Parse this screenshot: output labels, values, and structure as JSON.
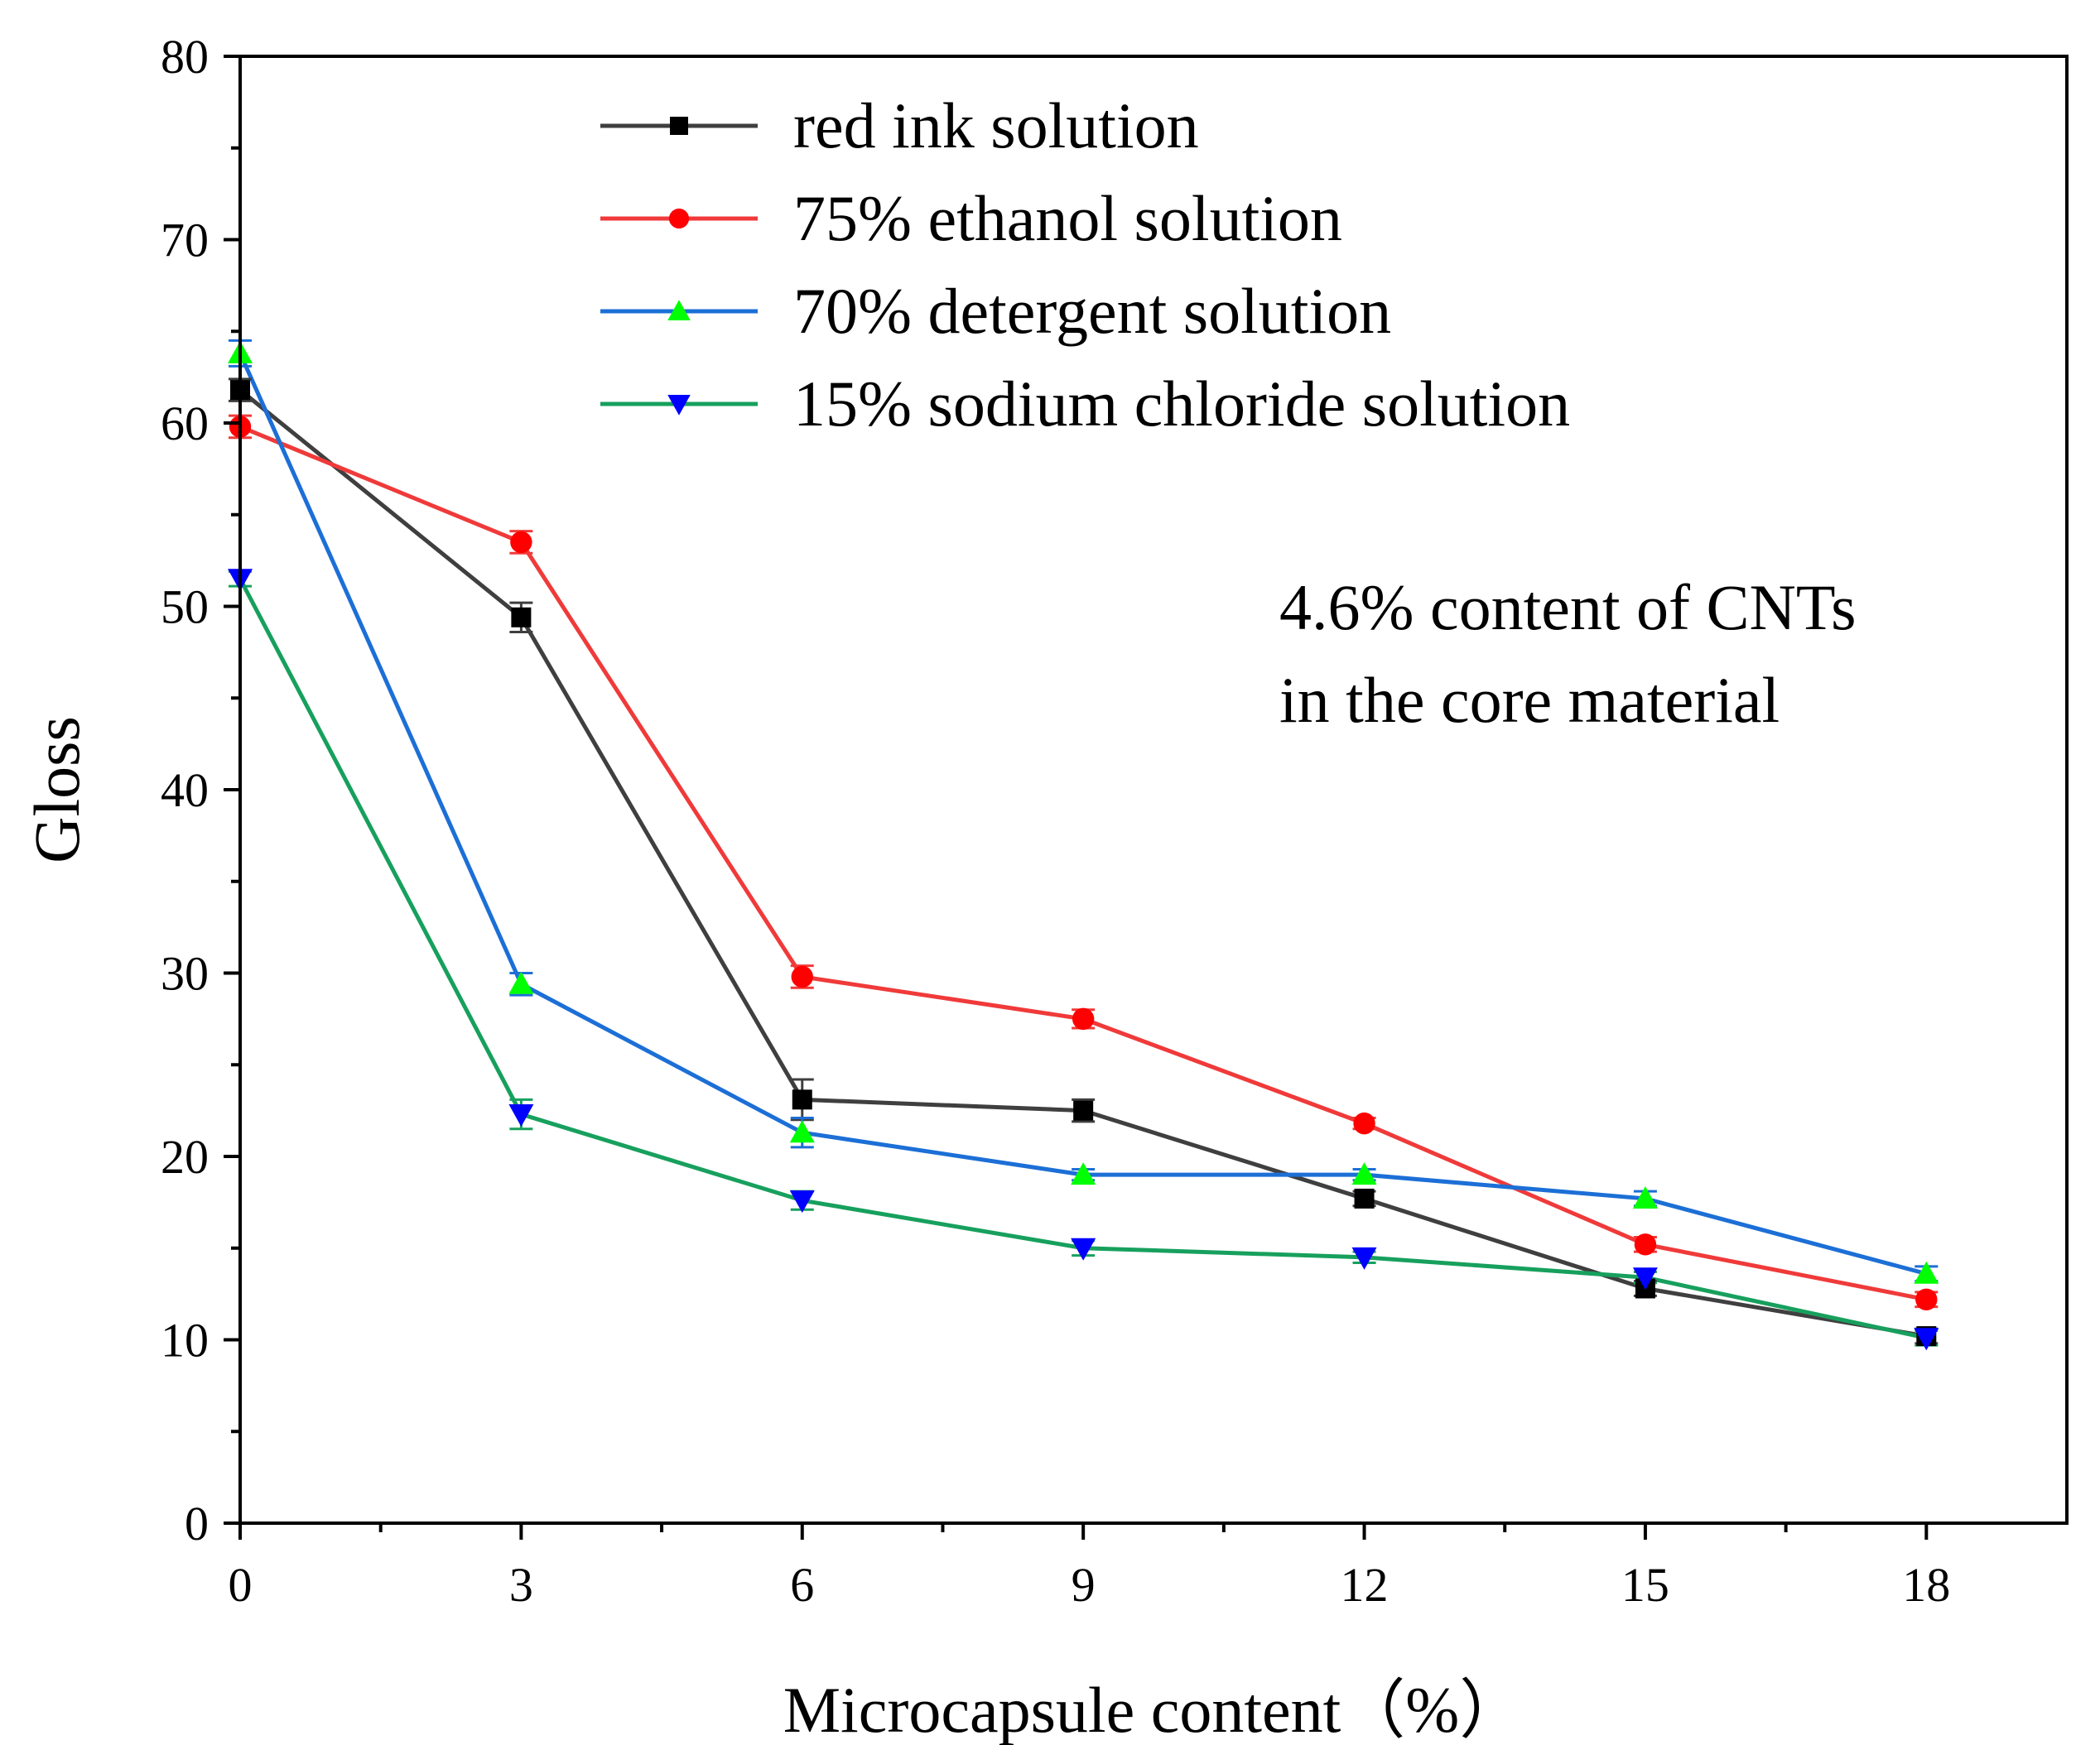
{
  "chart_data": {
    "type": "line",
    "title": "",
    "xlabel": "Microcapsule content（%）",
    "ylabel": "Gloss",
    "xlim": [
      0,
      19.5
    ],
    "ylim": [
      0,
      80
    ],
    "x": [
      0,
      3,
      6,
      9,
      12,
      15,
      18
    ],
    "x_ticks": [
      "0",
      "3",
      "6",
      "9",
      "12",
      "15",
      "18"
    ],
    "y_ticks": [
      "0",
      "10",
      "20",
      "30",
      "40",
      "50",
      "60",
      "70",
      "80"
    ],
    "grid": false,
    "legend_position": "top-center",
    "series": [
      {
        "name": "red ink solution",
        "line_color": "#3f3f3f",
        "marker_color": "#000000",
        "marker": "square",
        "values": [
          61.8,
          49.4,
          23.1,
          22.5,
          17.7,
          12.8,
          10.2
        ],
        "errors": [
          0.6,
          0.8,
          1.1,
          0.6,
          0.4,
          0.4,
          0.4
        ]
      },
      {
        "name": "75% ethanol solution",
        "line_color": "#f03a3a",
        "marker_color": "#ff0000",
        "marker": "circle",
        "values": [
          59.8,
          53.5,
          29.8,
          27.5,
          21.8,
          15.2,
          12.2
        ],
        "errors": [
          0.6,
          0.6,
          0.6,
          0.5,
          0.3,
          0.4,
          0.4
        ]
      },
      {
        "name": "70% detergent solution",
        "line_color": "#1c6fd6",
        "marker_color": "#00ff00",
        "marker": "triangle-up",
        "values": [
          63.8,
          29.4,
          21.3,
          19.0,
          19.0,
          17.7,
          13.6
        ],
        "errors": [
          0.7,
          0.6,
          0.8,
          0.3,
          0.3,
          0.4,
          0.4
        ]
      },
      {
        "name": "15% sodium chloride solution",
        "line_color": "#17a05d",
        "marker_color": "#0000ff",
        "marker": "triangle-down",
        "values": [
          51.5,
          22.3,
          17.6,
          15.0,
          14.5,
          13.4,
          10.1
        ],
        "errors": [
          0.4,
          0.8,
          0.5,
          0.4,
          0.3,
          0.3,
          0.4
        ]
      }
    ],
    "annotation": [
      "4.6% content of CNTs",
      "in the core material"
    ]
  }
}
